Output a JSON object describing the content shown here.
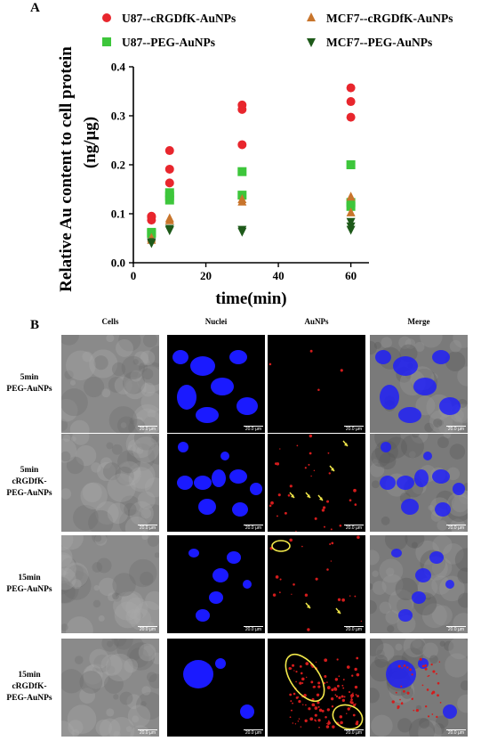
{
  "panel_a_letter": "A",
  "panel_b_letter": "B",
  "colors": {
    "u87_rgd": "#e8262d",
    "u87_peg": "#3dc63b",
    "mcf7_rgd": "#c8752c",
    "mcf7_peg": "#1e5a1a",
    "nuclei_blue": "#1a1aff",
    "np_red": "#d41c1c",
    "annotation_yellow": "#f2e84a"
  },
  "chart_data": {
    "type": "scatter",
    "xlabel": "time(min)",
    "ylabel": "Relative Au content to cell protein (ng/μg)",
    "ylabel_line1": "Relative Au content to cell protein",
    "ylabel_line2": "(ng/μg)",
    "xlim": [
      0,
      65
    ],
    "ylim": [
      0,
      0.4
    ],
    "x_ticks": [
      "0",
      "20",
      "40",
      "60"
    ],
    "y_ticks": [
      "0.0",
      "0.1",
      "0.2",
      "0.3",
      "0.4"
    ],
    "legend_position": "top",
    "series": [
      {
        "name": "U87--cRGDfK-AuNPs",
        "marker": "circle",
        "color": "#e8262d",
        "points": [
          [
            5,
            0.087
          ],
          [
            5,
            0.093
          ],
          [
            5,
            0.095
          ],
          [
            10,
            0.163
          ],
          [
            10,
            0.191
          ],
          [
            10,
            0.229
          ],
          [
            30,
            0.241
          ],
          [
            30,
            0.313
          ],
          [
            30,
            0.322
          ],
          [
            60,
            0.297
          ],
          [
            60,
            0.329
          ],
          [
            60,
            0.357
          ]
        ]
      },
      {
        "name": "U87--PEG-AuNPs",
        "marker": "square",
        "color": "#3dc63b",
        "points": [
          [
            5,
            0.06
          ],
          [
            5,
            0.062
          ],
          [
            10,
            0.128
          ],
          [
            10,
            0.136
          ],
          [
            10,
            0.143
          ],
          [
            30,
            0.138
          ],
          [
            30,
            0.186
          ],
          [
            60,
            0.115
          ],
          [
            60,
            0.123
          ],
          [
            60,
            0.2
          ]
        ]
      },
      {
        "name": "MCF7--cRGDfK-AuNPs",
        "marker": "triangle-up",
        "color": "#c8752c",
        "points": [
          [
            5,
            0.046
          ],
          [
            5,
            0.05
          ],
          [
            10,
            0.086
          ],
          [
            10,
            0.09
          ],
          [
            30,
            0.124
          ],
          [
            30,
            0.129
          ],
          [
            60,
            0.102
          ],
          [
            60,
            0.134
          ]
        ]
      },
      {
        "name": "MCF7--PEG-AuNPs",
        "marker": "triangle-down",
        "color": "#1e5a1a",
        "points": [
          [
            5,
            0.041
          ],
          [
            5,
            0.043
          ],
          [
            10,
            0.067
          ],
          [
            10,
            0.07
          ],
          [
            30,
            0.064
          ],
          [
            30,
            0.068
          ],
          [
            60,
            0.068
          ],
          [
            60,
            0.075
          ],
          [
            60,
            0.084
          ]
        ]
      }
    ]
  },
  "panel_b": {
    "columns": [
      "Cells",
      "Nuclei",
      "AuNPs",
      "Merge"
    ],
    "rows": [
      {
        "line1": "5min",
        "line2": "PEG-AuNPs",
        "line3": ""
      },
      {
        "line1": "5min",
        "line2": "cRGDfK-",
        "line3": "PEG-AuNPs"
      },
      {
        "line1": "15min",
        "line2": "PEG-AuNPs",
        "line3": ""
      },
      {
        "line1": "15min",
        "line2": "cRGDfK-",
        "line3": "PEG-AuNPs"
      }
    ],
    "scale_bar_label": "20.0 µm"
  }
}
